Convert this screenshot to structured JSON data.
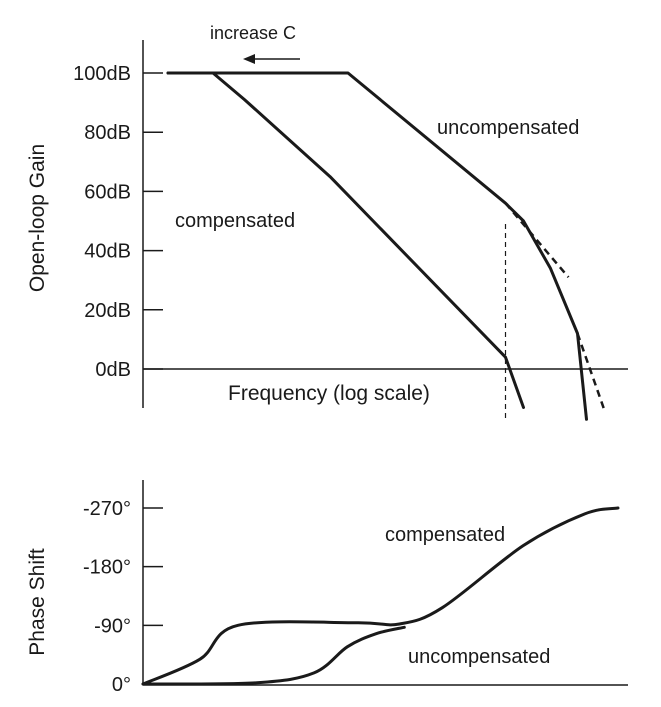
{
  "chart_data": [
    {
      "type": "line",
      "title": "",
      "ylabel": "Open-loop Gain",
      "xlabel": "Frequency (log scale)",
      "x_scale": "log",
      "ylim": [
        -15,
        110
      ],
      "yticks": [
        "100dB",
        "80dB",
        "60dB",
        "40dB",
        "20dB",
        "0dB"
      ],
      "ytick_values": [
        100,
        80,
        60,
        40,
        20,
        0
      ],
      "series": [
        {
          "name": "uncompensated",
          "x": [
            0.0,
            0.4,
            0.75,
            0.79,
            0.85,
            0.91,
            0.93
          ],
          "y": [
            100,
            100,
            56,
            50,
            34,
            12,
            -17
          ]
        },
        {
          "name": "compensated",
          "x": [
            0.0,
            0.1,
            0.17,
            0.36,
            0.75,
            0.79
          ],
          "y": [
            100,
            100,
            91,
            65,
            4,
            -13
          ]
        }
      ],
      "annotations": [
        {
          "text": "increase C",
          "style": "arrow-left"
        },
        {
          "text": "uncompensated"
        },
        {
          "text": "compensated"
        }
      ],
      "extrapolations": [
        {
          "from": [
            0.75,
            56
          ],
          "to": [
            0.89,
            31
          ],
          "style": "dashed"
        },
        {
          "from": [
            0.91,
            12
          ],
          "to": [
            0.97,
            -14
          ],
          "style": "dashed"
        },
        {
          "from": [
            0.75,
            49
          ],
          "to": [
            0.75,
            -17
          ],
          "style": "dashed-vertical"
        }
      ]
    },
    {
      "type": "line",
      "title": "",
      "ylabel": "Phase Shift",
      "ylim": [
        0,
        -300
      ],
      "yticks": [
        "-270°",
        "-180°",
        "-90°",
        "0°"
      ],
      "ytick_values": [
        -270,
        -180,
        -90,
        0
      ],
      "series": [
        {
          "name": "compensated",
          "x": [
            0.0,
            0.12,
            0.2,
            0.45,
            0.54,
            0.63,
            0.8,
            0.93,
            1.0
          ],
          "y": [
            0,
            -38,
            -90,
            -94,
            -92,
            -117,
            -212,
            -261,
            -270
          ]
        },
        {
          "name": "uncompensated",
          "x": [
            0.0,
            0.24,
            0.36,
            0.43,
            0.49,
            0.55
          ],
          "y": [
            0,
            -2,
            -17,
            -57,
            -77,
            -87
          ]
        }
      ],
      "annotations": [
        {
          "text": "compensated"
        },
        {
          "text": "uncompensated"
        }
      ]
    }
  ]
}
